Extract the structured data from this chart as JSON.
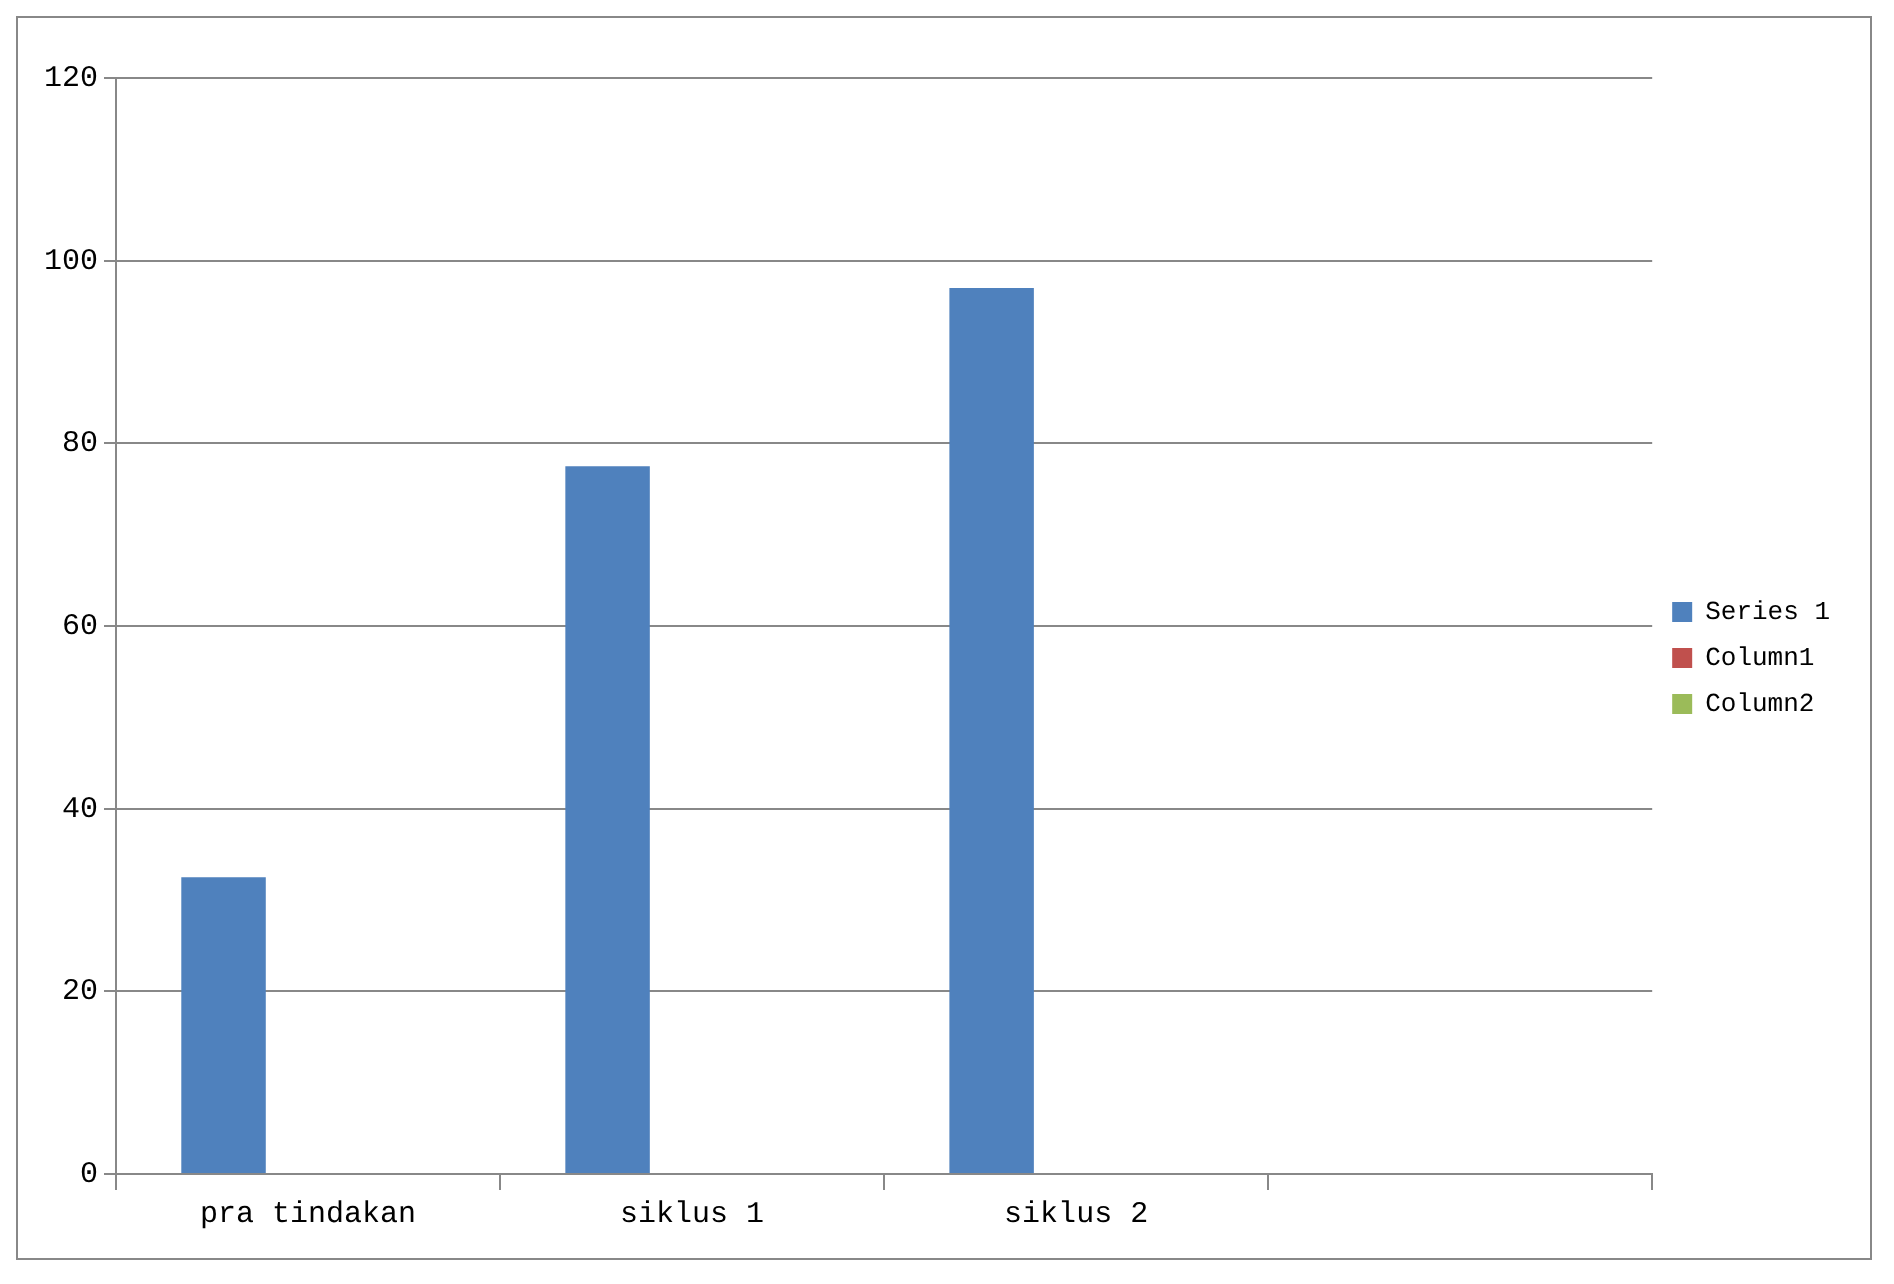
{
  "chart_data": {
    "type": "bar",
    "categories": [
      "pra tindakan",
      "siklus 1",
      "siklus 2",
      null
    ],
    "series": [
      {
        "name": "Series 1",
        "color": "#4f81bd",
        "values": [
          32.5,
          77.5,
          97,
          null
        ]
      },
      {
        "name": "Column1",
        "color": "#c0504d",
        "values": [
          null,
          null,
          null,
          null
        ]
      },
      {
        "name": "Column2",
        "color": "#9bbb59",
        "values": [
          null,
          null,
          null,
          null
        ]
      }
    ],
    "ylim": [
      0,
      120
    ],
    "yticks": [
      0,
      20,
      40,
      60,
      80,
      100,
      120
    ],
    "grid": "y",
    "legend": "right"
  }
}
